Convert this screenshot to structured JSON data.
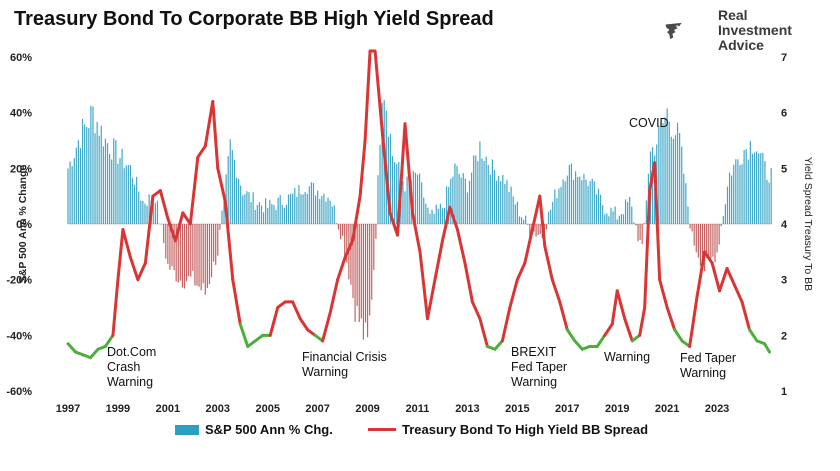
{
  "title": "Treasury Bond To Corporate BB High Yield Spread",
  "logo": {
    "line1": "Real",
    "line2": "Investment",
    "line3": "Advice"
  },
  "colors": {
    "bars": "#2a9fc2",
    "neg_bars": "#b83a3a",
    "spread_high": "#d93535",
    "spread_low": "#4caf3c"
  },
  "legend": {
    "bars_label": "S&P 500 Ann % Chg.",
    "line_label": "Treasury Bond To High Yield BB Spread"
  },
  "chart_data": {
    "type": "bar+line",
    "title": "Treasury Bond To Corporate BB High Yield Spread",
    "ylabel_left": "S&P 500 Ann % Change",
    "ylabel_right": "Yield Spread Treasury To BB",
    "ylim_left": [
      -60,
      60
    ],
    "ylim_right": [
      1,
      7
    ],
    "yticks_left": [
      "60%",
      "40%",
      "20%",
      "0%",
      "-20%",
      "-40%",
      "-60%"
    ],
    "yticks_right": [
      "7",
      "6",
      "5",
      "4",
      "3",
      "2",
      "1"
    ],
    "xlim": [
      1997,
      2025.2
    ],
    "xticks": [
      "1997",
      "1999",
      "2001",
      "2003",
      "2005",
      "2007",
      "2009",
      "2011",
      "2013",
      "2015",
      "2017",
      "2019",
      "2021",
      "2023"
    ],
    "green_threshold": 2.0,
    "series": [
      {
        "name": "S&P 500 Ann % Chg.",
        "kind": "bar",
        "x": [
          1997.0,
          1997.5,
          1998.0,
          1998.5,
          1999.0,
          1999.5,
          2000.0,
          2000.5,
          2001.0,
          2001.5,
          2002.0,
          2002.5,
          2003.0,
          2003.5,
          2004.0,
          2004.5,
          2005.0,
          2005.5,
          2006.0,
          2006.5,
          2007.0,
          2007.5,
          2008.0,
          2008.5,
          2009.0,
          2009.3,
          2009.6,
          2010.0,
          2010.5,
          2011.0,
          2011.5,
          2012.0,
          2012.5,
          2013.0,
          2013.5,
          2014.0,
          2014.5,
          2015.0,
          2015.5,
          2016.0,
          2016.5,
          2017.0,
          2017.5,
          2018.0,
          2018.5,
          2019.0,
          2019.5,
          2020.0,
          2020.3,
          2020.6,
          2021.0,
          2021.5,
          2022.0,
          2022.5,
          2023.0,
          2023.5,
          2024.0,
          2024.5,
          2025.0
        ],
        "values": [
          20,
          32,
          40,
          30,
          25,
          20,
          8,
          10,
          -15,
          -20,
          -20,
          -25,
          -10,
          28,
          12,
          8,
          6,
          8,
          10,
          14,
          12,
          10,
          -5,
          -30,
          -44,
          -10,
          55,
          25,
          14,
          18,
          2,
          6,
          20,
          14,
          28,
          20,
          16,
          6,
          -2,
          -4,
          10,
          20,
          18,
          14,
          6,
          3,
          8,
          -10,
          25,
          30,
          40,
          30,
          -5,
          -16,
          -10,
          18,
          26,
          30,
          18
        ]
      },
      {
        "name": "Treasury Bond To High Yield BB Spread",
        "kind": "line",
        "x": [
          1997.0,
          1997.3,
          1997.6,
          1997.9,
          1998.2,
          1998.5,
          1998.8,
          1999.0,
          1999.2,
          1999.5,
          1999.8,
          2000.1,
          2000.4,
          2000.7,
          2001.0,
          2001.3,
          2001.6,
          2001.9,
          2002.2,
          2002.5,
          2002.8,
          2003.0,
          2003.3,
          2003.6,
          2003.9,
          2004.2,
          2004.5,
          2004.8,
          2005.1,
          2005.4,
          2005.7,
          2006.0,
          2006.3,
          2006.6,
          2006.9,
          2007.2,
          2007.5,
          2007.8,
          2008.1,
          2008.4,
          2008.7,
          2008.9,
          2009.1,
          2009.3,
          2009.6,
          2009.9,
          2010.2,
          2010.5,
          2010.8,
          2011.1,
          2011.4,
          2011.7,
          2012.0,
          2012.3,
          2012.6,
          2012.9,
          2013.2,
          2013.5,
          2013.8,
          2014.1,
          2014.4,
          2014.7,
          2015.0,
          2015.3,
          2015.6,
          2015.9,
          2016.1,
          2016.4,
          2016.7,
          2017.0,
          2017.3,
          2017.6,
          2017.9,
          2018.2,
          2018.5,
          2018.8,
          2019.0,
          2019.3,
          2019.6,
          2019.9,
          2020.1,
          2020.3,
          2020.5,
          2020.7,
          2021.0,
          2021.3,
          2021.6,
          2021.9,
          2022.2,
          2022.5,
          2022.8,
          2023.1,
          2023.4,
          2023.7,
          2024.0,
          2024.3,
          2024.6,
          2024.9,
          2025.1
        ],
        "values": [
          1.85,
          1.7,
          1.65,
          1.6,
          1.75,
          1.8,
          2.0,
          3.0,
          3.9,
          3.4,
          3.0,
          3.3,
          4.5,
          4.6,
          4.1,
          3.7,
          4.2,
          4.0,
          5.2,
          5.4,
          6.2,
          5.0,
          4.4,
          3.0,
          2.2,
          1.8,
          1.9,
          2.0,
          2.0,
          2.5,
          2.6,
          2.6,
          2.3,
          2.1,
          2.0,
          1.9,
          2.4,
          3.0,
          3.4,
          3.7,
          4.5,
          5.5,
          7.5,
          7.3,
          5.6,
          4.2,
          3.8,
          5.8,
          4.2,
          3.5,
          2.3,
          3.0,
          3.7,
          4.3,
          3.9,
          3.3,
          2.6,
          2.3,
          1.8,
          1.75,
          1.9,
          2.5,
          3.0,
          3.3,
          3.9,
          4.5,
          3.6,
          3.0,
          2.6,
          2.1,
          1.9,
          1.75,
          1.8,
          1.8,
          2.0,
          2.2,
          2.8,
          2.3,
          1.9,
          2.0,
          2.5,
          4.6,
          5.1,
          3.0,
          2.5,
          2.1,
          1.9,
          1.8,
          2.7,
          3.5,
          3.3,
          2.8,
          3.2,
          2.9,
          2.6,
          2.1,
          1.9,
          1.85,
          1.7
        ]
      }
    ],
    "annotations": [
      {
        "text": [
          "Dot.Com",
          "Crash",
          "Warning"
        ]
      },
      {
        "text": [
          "Financial Crisis",
          "Warning"
        ]
      },
      {
        "text": [
          "BREXIT",
          "Fed Taper",
          "Warning"
        ]
      },
      {
        "text": [
          "Warning"
        ]
      },
      {
        "text": [
          "COVID"
        ]
      },
      {
        "text": [
          "Fed Taper",
          "Warning"
        ]
      }
    ]
  }
}
